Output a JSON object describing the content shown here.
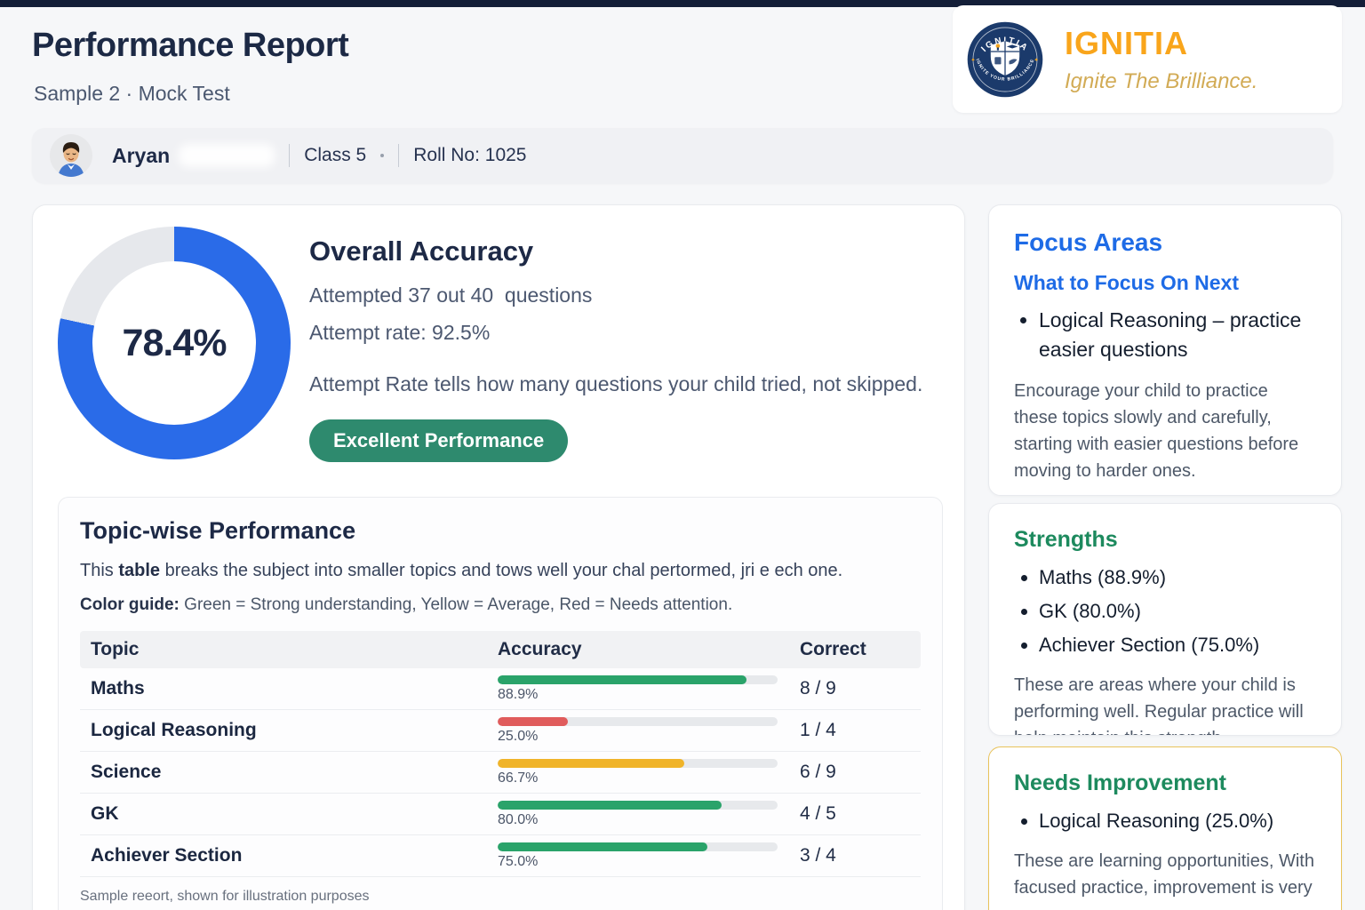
{
  "header": {
    "title": "Performance Report",
    "subtitle": "Sample 2 · Mock Test"
  },
  "brand": {
    "name": "IGNITIA",
    "tagline": "Ignite The Brilliance.",
    "badge_arc_top": "IGNITIA",
    "badge_arc_bottom": "IGNITE YOUR BRILLIANCE",
    "wordmark_color": "#F9A51B",
    "tagline_color": "#D2AB55",
    "badge_navy": "#1B3A6B",
    "badge_accent": "#F2A41F"
  },
  "student": {
    "name": "Aryan",
    "class_label": "Class 5",
    "roll_label": "Roll No: 1025"
  },
  "overall": {
    "title": "Overall Accuracy",
    "accuracy_label": "78.4%",
    "attempted_line": "Attempted 37 out 40  questions",
    "attempt_rate_line": "Attempt rate: 92.5%",
    "note": "Attempt Rate tells how many questions your child tried, not skipped.",
    "badge_label": "Excellent Performance",
    "badge_color": "#2E8A6E",
    "donut": {
      "percent": 78.4,
      "color": "#2A6BE8",
      "track": "#E6E8EC"
    }
  },
  "topics": {
    "title": "Topic-wise Performance",
    "description_prefix": "This ",
    "description_bold": "table",
    "description_suffix": " breaks the subject into smaller topics and tows well your chal pertormed, jri e ech one.",
    "color_guide_label": "Color guide:",
    "color_guide_text": " Green = Strong understanding, Yellow = Average, Red = Needs attention.",
    "columns": [
      "Topic",
      "Accuracy",
      "Correct"
    ],
    "rows": [
      {
        "topic": "Maths",
        "accuracy": 88.9,
        "accuracy_label": "88.9%",
        "correct": "8 / 9",
        "color": "#2AA36A"
      },
      {
        "topic": "Logical Reasoning",
        "accuracy": 25.0,
        "accuracy_label": "25.0%",
        "correct": "1 / 4",
        "color": "#E05C5C"
      },
      {
        "topic": "Science",
        "accuracy": 66.7,
        "accuracy_label": "66.7%",
        "correct": "6 / 9",
        "color": "#F0B429"
      },
      {
        "topic": "GK",
        "accuracy": 80.0,
        "accuracy_label": "80.0%",
        "correct": "4 / 5",
        "color": "#2AA36A"
      },
      {
        "topic": "Achiever Section",
        "accuracy": 75.0,
        "accuracy_label": "75.0%",
        "correct": "3 / 4",
        "color": "#2AA36A"
      }
    ],
    "footnote": "Sample reeort, shown for illustration purposes"
  },
  "focus": {
    "title": "Focus Areas",
    "subtitle": "What to Focus On Next",
    "items": [
      "Logical Reasoning – practice easier questions"
    ],
    "note": "Encourage your child to practice these topics slowly and carefully, starting with easier questions before moving to harder ones."
  },
  "strengths": {
    "title": "Strengths",
    "items": [
      "Maths (88.9%)",
      "GK (80.0%)",
      "Achiever Section (75.0%)"
    ],
    "note": "These are areas where your child is performing well. Regular practice will help maintain this strength."
  },
  "needs": {
    "title": "Needs Improvement",
    "items": [
      "Logical Reasoning (25.0%)"
    ],
    "note": "These are learning opportunities, With facused practice, improvement is very",
    "border_color": "#E9C35B"
  }
}
